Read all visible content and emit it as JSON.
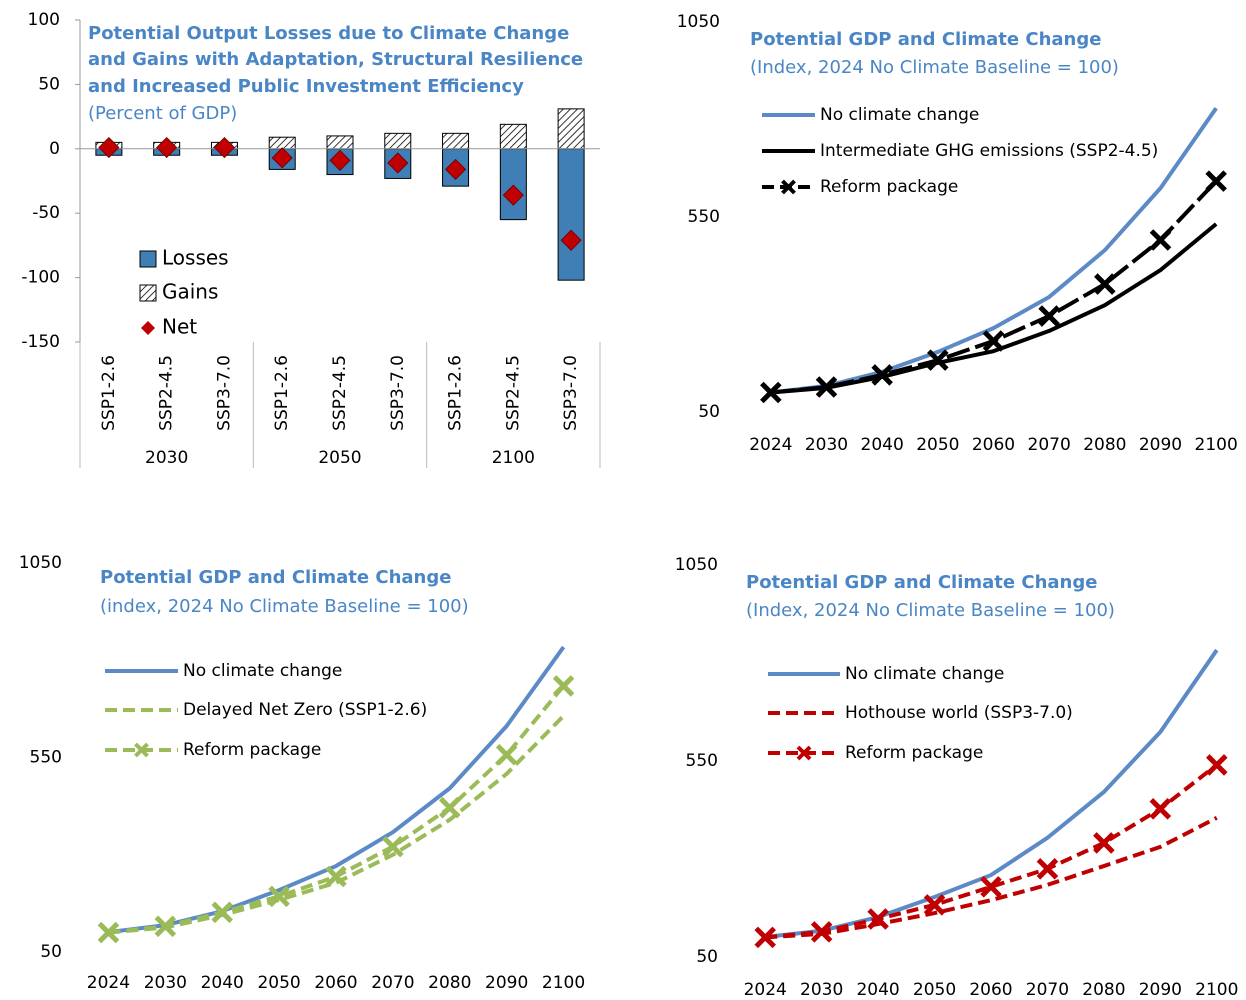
{
  "chart_data": [
    {
      "type": "bar",
      "title": [
        "Potential Output Losses due to Climate Change",
        "and Gains with Adaptation, Structural Resilience",
        "and Increased Public Investment Efficiency"
      ],
      "subtitle": "(Percent of GDP)",
      "categories": [
        "SSP1-2.6",
        "SSP2-4.5",
        "SSP3-7.0",
        "SSP1-2.6",
        "SSP2-4.5",
        "SSP3-7.0",
        "SSP1-2.6",
        "SSP2-4.5",
        "SSP3-7.0"
      ],
      "group_labels": [
        "2030",
        "2050",
        "2100"
      ],
      "ylim": [
        -150,
        100
      ],
      "yticks": [
        -150,
        -100,
        -50,
        0,
        50,
        100
      ],
      "legend": "lower left",
      "series": [
        {
          "name": "Losses",
          "color": "#3f7fb5",
          "values": [
            -5,
            -5,
            -5,
            -16,
            -20,
            -23,
            -29,
            -55,
            -102
          ]
        },
        {
          "name": "Gains",
          "color": "#000000",
          "hatch": true,
          "values": [
            5,
            5,
            5,
            9,
            10,
            12,
            12,
            19,
            31
          ]
        },
        {
          "name": "Net",
          "color": "#c00000",
          "marker": "diamond",
          "values": [
            1,
            1,
            1,
            -7,
            -9,
            -11,
            -16,
            -36,
            -71
          ]
        }
      ]
    },
    {
      "type": "line",
      "title": "Potential GDP and Climate Change",
      "subtitle": "(Index, 2024 No Climate Baseline = 100)",
      "categories": [
        "2024",
        "2030",
        "2040",
        "2050",
        "2060",
        "2070",
        "2080",
        "2090",
        "2100"
      ],
      "ylim": [
        50,
        1050
      ],
      "yticks": [
        50,
        550,
        1050
      ],
      "legend": "upper left",
      "series": [
        {
          "name": "No climate change",
          "color": "#5b8ac6",
          "values": [
            100,
            117,
            153,
            204,
            265,
            345,
            465,
            624,
            829
          ]
        },
        {
          "name": "Intermediate GHG emissions (SSP2-4.5)",
          "color": "#000000",
          "values": [
            100,
            112,
            140,
            176,
            206,
            258,
            324,
            414,
            532
          ]
        },
        {
          "name": "Reform package",
          "color": "#000000",
          "dash": true,
          "marker": "x",
          "values": [
            100,
            114,
            145,
            183,
            232,
            296,
            378,
            491,
            642
          ]
        }
      ]
    },
    {
      "type": "line",
      "title": "Potential GDP and Climate Change",
      "subtitle": "(index, 2024 No Climate Baseline = 100)",
      "categories": [
        "2024",
        "2030",
        "2040",
        "2050",
        "2060",
        "2070",
        "2080",
        "2090",
        "2100"
      ],
      "ylim": [
        50,
        1050
      ],
      "yticks": [
        50,
        550,
        1050
      ],
      "legend": "upper left",
      "series": [
        {
          "name": "No climate change",
          "color": "#5b8ac6",
          "values": [
            101,
            119,
            155,
            209,
            271,
            358,
            471,
            631,
            834
          ]
        },
        {
          "name": "Delayed Net Zero (SSP1-2.6)",
          "color": "#9bbb59",
          "dash": true,
          "values": [
            100,
            113,
            145,
            184,
            228,
            300,
            390,
            508,
            657
          ]
        },
        {
          "name": "Reform package",
          "color": "#9bbb59",
          "dash": true,
          "marker": "x",
          "values": [
            100,
            116,
            152,
            193,
            244,
            321,
            421,
            557,
            734
          ]
        }
      ]
    },
    {
      "type": "line",
      "title": "Potential GDP and Climate Change",
      "subtitle": "(Index, 2024 No Climate Baseline = 100)",
      "categories": [
        "2024",
        "2030",
        "2040",
        "2050",
        "2060",
        "2070",
        "2080",
        "2090",
        "2100"
      ],
      "ylim": [
        50,
        1050
      ],
      "yticks": [
        50,
        550,
        1050
      ],
      "legend": "upper left",
      "series": [
        {
          "name": "No climate change",
          "color": "#5b8ac6",
          "values": [
            101,
            117,
            152,
            203,
            259,
            354,
            471,
            624,
            833
          ]
        },
        {
          "name": "Hothouse world (SSP3-7.0)",
          "color": "#c00000",
          "dash": true,
          "values": [
            100,
            109,
            134,
            162,
            195,
            234,
            282,
            331,
            405
          ]
        },
        {
          "name": "Reform package",
          "color": "#c00000",
          "dash": true,
          "marker": "x",
          "values": [
            100,
            114,
            147,
            183,
            229,
            275,
            341,
            428,
            540
          ]
        }
      ]
    }
  ]
}
